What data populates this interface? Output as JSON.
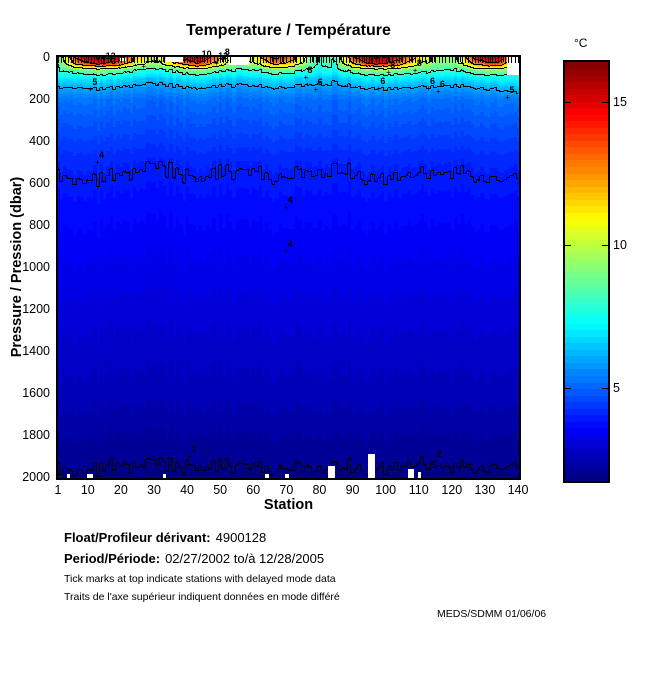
{
  "title": "Temperature / Température",
  "axes": {
    "x_label": "Station",
    "y_label": "Pressure / Pression (dbar)",
    "x_ticks": [
      1,
      10,
      20,
      30,
      40,
      50,
      60,
      70,
      80,
      90,
      100,
      110,
      120,
      130,
      140
    ],
    "y_ticks": [
      0,
      200,
      400,
      600,
      800,
      1000,
      1200,
      1400,
      1600,
      1800,
      2000
    ],
    "x_range": [
      1,
      140
    ],
    "y_range": [
      0,
      2000
    ]
  },
  "colorbar": {
    "unit": "°C",
    "ticks": [
      5,
      10,
      15
    ],
    "min": 1.8,
    "max": 16.4
  },
  "chart_data": {
    "type": "heatmap",
    "colormap": "jet",
    "quantize_levels": 64,
    "station_range": [
      1,
      140
    ],
    "pressure_range": [
      0,
      2000
    ],
    "scale": {
      "min": 1.8,
      "max": 16.4
    },
    "grid_stations": [
      1,
      7,
      13,
      19,
      25,
      31,
      37,
      43,
      49,
      55,
      61,
      67,
      73,
      79,
      85,
      91,
      97,
      103,
      109,
      115,
      121,
      127,
      133,
      140
    ],
    "grid_depths": [
      0,
      30,
      60,
      100,
      150,
      200,
      300,
      500,
      700,
      1000,
      1300,
      1600,
      1900,
      2000
    ],
    "grid_temps_c": [
      [
        8.5,
        8.3,
        8.0,
        7.0,
        5.9,
        5.2,
        4.8,
        4.1,
        3.75,
        3.35,
        2.95,
        2.6,
        2.1,
        1.92
      ],
      [
        14.5,
        12.5,
        8.5,
        6.8,
        5.8,
        5.2,
        4.8,
        4.12,
        3.76,
        3.35,
        2.95,
        2.6,
        2.08,
        1.92
      ],
      [
        16.3,
        14.5,
        9.5,
        7.2,
        6.0,
        5.3,
        4.85,
        4.15,
        3.78,
        3.36,
        2.96,
        2.61,
        2.1,
        1.93
      ],
      [
        15.5,
        13.5,
        9.0,
        7.0,
        5.9,
        5.25,
        4.82,
        4.12,
        3.76,
        3.35,
        2.95,
        2.6,
        2.07,
        1.92
      ],
      [
        11.5,
        10.5,
        8.0,
        6.6,
        5.7,
        5.15,
        4.78,
        4.08,
        3.74,
        3.34,
        2.94,
        2.59,
        2.09,
        1.92
      ],
      [
        10.5,
        9.8,
        7.8,
        6.5,
        5.7,
        5.1,
        4.75,
        4.05,
        3.72,
        3.33,
        2.94,
        2.59,
        2.06,
        1.91
      ],
      [
        14.0,
        12.0,
        8.5,
        6.8,
        5.8,
        5.2,
        4.8,
        4.1,
        3.75,
        3.35,
        2.95,
        2.6,
        2.1,
        1.92
      ],
      [
        16.0,
        14.0,
        9.5,
        7.2,
        6.0,
        5.3,
        4.85,
        4.15,
        3.78,
        3.36,
        2.96,
        2.61,
        2.08,
        1.93
      ],
      [
        13.0,
        11.5,
        8.5,
        6.8,
        5.8,
        5.2,
        4.8,
        4.1,
        3.76,
        3.35,
        2.95,
        2.6,
        2.1,
        1.92
      ],
      [
        9.0,
        8.8,
        8.0,
        6.6,
        5.7,
        5.15,
        4.78,
        4.08,
        3.74,
        3.34,
        2.94,
        2.59,
        2.07,
        1.92
      ],
      [
        11.0,
        10.0,
        8.0,
        6.7,
        5.75,
        5.15,
        4.78,
        4.08,
        3.74,
        3.34,
        2.94,
        2.59,
        2.09,
        1.92
      ],
      [
        14.5,
        12.5,
        9.0,
        7.0,
        5.9,
        5.25,
        4.82,
        4.12,
        3.77,
        3.35,
        2.95,
        2.6,
        2.08,
        1.92
      ],
      [
        12.0,
        10.8,
        8.5,
        6.8,
        5.8,
        5.2,
        4.8,
        4.1,
        3.76,
        3.35,
        2.95,
        2.6,
        2.1,
        1.92
      ],
      [
        7.9,
        7.8,
        7.4,
        6.3,
        5.6,
        5.1,
        4.74,
        4.05,
        3.72,
        3.33,
        2.93,
        2.58,
        2.06,
        1.91
      ],
      [
        8.5,
        8.2,
        7.6,
        6.4,
        5.6,
        5.1,
        4.75,
        4.05,
        3.72,
        3.33,
        2.93,
        2.58,
        2.08,
        1.91
      ],
      [
        14.5,
        12.5,
        8.8,
        6.9,
        5.85,
        5.2,
        4.8,
        4.1,
        3.75,
        3.35,
        2.95,
        2.6,
        2.09,
        1.92
      ],
      [
        16.2,
        14.5,
        9.5,
        7.2,
        6.0,
        5.3,
        4.85,
        4.15,
        3.78,
        3.36,
        2.96,
        2.61,
        2.1,
        1.93
      ],
      [
        15.0,
        13.5,
        9.2,
        7.2,
        6.0,
        5.3,
        4.85,
        4.14,
        3.77,
        3.36,
        2.96,
        2.61,
        2.09,
        1.93
      ],
      [
        12.0,
        10.5,
        8.8,
        7.0,
        5.9,
        5.25,
        4.82,
        4.12,
        3.76,
        3.35,
        2.95,
        2.6,
        2.07,
        1.92
      ],
      [
        9.5,
        9.2,
        8.2,
        6.9,
        5.85,
        5.2,
        4.8,
        4.1,
        3.75,
        3.35,
        2.95,
        2.6,
        2.08,
        1.92
      ],
      [
        9.5,
        9.2,
        8.0,
        6.7,
        5.75,
        5.15,
        4.78,
        4.08,
        3.74,
        3.34,
        2.94,
        2.59,
        2.09,
        1.92
      ],
      [
        14.5,
        12.5,
        9.0,
        7.0,
        5.9,
        5.25,
        4.82,
        4.12,
        3.76,
        3.35,
        2.95,
        2.6,
        2.1,
        1.92
      ],
      [
        15.8,
        14.0,
        9.5,
        7.2,
        6.0,
        5.3,
        4.85,
        4.15,
        3.78,
        3.36,
        2.96,
        2.61,
        2.08,
        1.93
      ],
      [
        11.0,
        9.8,
        8.2,
        7.5,
        6.5,
        5.4,
        4.9,
        4.15,
        3.78,
        3.36,
        2.96,
        2.61,
        2.1,
        1.93
      ]
    ],
    "contour_levels": [
      2,
      4,
      6,
      8,
      10,
      12,
      14,
      16
    ],
    "contour_labels": [
      {
        "text": "12",
        "station": 16,
        "pressure": 30
      },
      {
        "text": "10",
        "station": 28,
        "pressure": 42
      },
      {
        "text": "5",
        "station": 12,
        "pressure": 150
      },
      {
        "text": "4",
        "station": 14,
        "pressure": 500
      },
      {
        "text": "10",
        "station": 45,
        "pressure": 20
      },
      {
        "text": "12",
        "station": 50,
        "pressure": 30
      },
      {
        "text": "8",
        "station": 52,
        "pressure": 8
      },
      {
        "text": "8",
        "station": 77,
        "pressure": 95
      },
      {
        "text": "6",
        "station": 80,
        "pressure": 150
      },
      {
        "text": "4",
        "station": 71,
        "pressure": 715
      },
      {
        "text": "4",
        "station": 71,
        "pressure": 925
      },
      {
        "text": "8",
        "station": 102,
        "pressure": 70
      },
      {
        "text": "6",
        "station": 99,
        "pressure": 148
      },
      {
        "text": "8",
        "station": 110,
        "pressure": 60
      },
      {
        "text": "6",
        "station": 114,
        "pressure": 148
      },
      {
        "text": "6",
        "station": 117,
        "pressure": 160
      },
      {
        "text": "5",
        "station": 138,
        "pressure": 190
      },
      {
        "text": "2",
        "station": 42,
        "pressure": 1900
      },
      {
        "text": "2",
        "station": 116,
        "pressure": 1922
      }
    ],
    "missing_data": [
      [
        34,
        38,
        0,
        22
      ],
      [
        53,
        58,
        0,
        38
      ],
      [
        20,
        21,
        4,
        16
      ],
      [
        137,
        140,
        0,
        85
      ],
      [
        95,
        96,
        1890,
        2000
      ],
      [
        83,
        84,
        1945,
        2000
      ],
      [
        107,
        108,
        1958,
        2000
      ],
      [
        110,
        110,
        1975,
        2000
      ],
      [
        4,
        4,
        1985,
        2000
      ],
      [
        10,
        11,
        1985,
        2000
      ],
      [
        33,
        33,
        1985,
        2000
      ],
      [
        64,
        64,
        1985,
        2000
      ],
      [
        70,
        70,
        1985,
        2000
      ]
    ],
    "delayed_tick_gaps": [
      [
        34,
        38
      ],
      [
        54,
        58
      ]
    ],
    "noise": {
      "surface_amp": 0.32,
      "decay_dbar": 140,
      "deep_amp": 0.05
    }
  },
  "footer": {
    "float_label": "Float/Profileur dérivant:",
    "float_value": "4900128",
    "period_label": "Period/Période:",
    "period_value": "02/27/2002  to/à  12/28/2005",
    "note_en": "Tick marks at top indicate stations with delayed mode data",
    "note_fr": "Traits de l'axe supérieur indiquent données en mode différé",
    "credit": "MEDS/SDMM  01/06/06"
  }
}
